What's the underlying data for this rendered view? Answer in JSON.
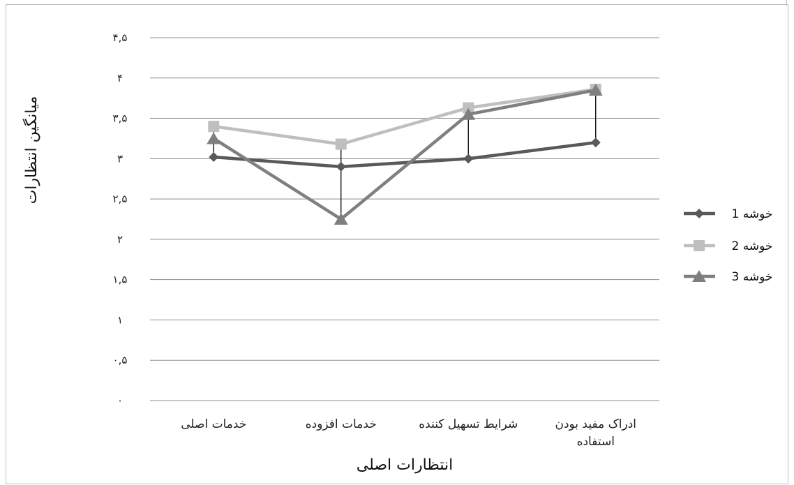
{
  "chart_data": {
    "type": "line",
    "title": "",
    "xlabel": "انتظارات اصلی",
    "ylabel": "میانگین انتظارات",
    "categories": [
      [
        "خدمات اصلی"
      ],
      [
        "خدمات افزوده"
      ],
      [
        "شرایط تسهیل کننده"
      ],
      [
        "ادراک مفید بودن",
        "استفاده"
      ]
    ],
    "ylim": [
      0,
      4.5
    ],
    "yticks": [
      0,
      0.5,
      1,
      1.5,
      2,
      2.5,
      3,
      3.5,
      4,
      4.5
    ],
    "ytick_labels": [
      "۰",
      "۰,۵",
      "۱",
      "۱,۵",
      "۲",
      "۲,۵",
      "۳",
      "۳,۵",
      "۴",
      "۴,۵"
    ],
    "grid": true,
    "legend_position": "right",
    "high_low_lines": true,
    "series": [
      {
        "name": "خوشه 1",
        "marker": "diamond",
        "color": "#595959",
        "values": [
          3.02,
          2.9,
          3.0,
          3.2
        ]
      },
      {
        "name": "خوشه 2",
        "marker": "square",
        "color": "#bfbfbf",
        "values": [
          3.4,
          3.18,
          3.63,
          3.86
        ]
      },
      {
        "name": "خوشه 3",
        "marker": "triangle",
        "color": "#7f7f7f",
        "values": [
          3.25,
          2.25,
          3.55,
          3.85
        ]
      }
    ]
  }
}
